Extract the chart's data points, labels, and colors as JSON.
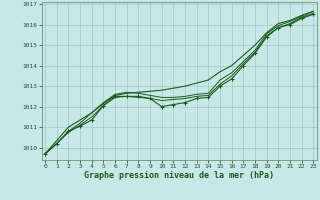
{
  "xlabel": "Graphe pression niveau de la mer (hPa)",
  "background_color": "#c8e8e8",
  "grid_color": "#b0c8c8",
  "line_color": "#1a5c1a",
  "xlim": [
    -0.3,
    23.3
  ],
  "ylim": [
    1009.4,
    1017.1
  ],
  "yticks": [
    1010,
    1011,
    1012,
    1013,
    1014,
    1015,
    1016,
    1017
  ],
  "x_ticks": [
    0,
    1,
    2,
    3,
    4,
    5,
    6,
    7,
    8,
    9,
    10,
    11,
    12,
    13,
    14,
    15,
    16,
    17,
    18,
    19,
    20,
    21,
    22,
    23
  ],
  "series_no_marker": [
    [
      1009.7,
      1010.2,
      1010.75,
      1011.1,
      1011.5,
      1012.05,
      1012.45,
      1012.5,
      1012.45,
      1012.4,
      1012.3,
      1012.35,
      1012.4,
      1012.5,
      1012.55,
      1013.1,
      1013.5,
      1014.1,
      1014.65,
      1015.45,
      1015.85,
      1016.05,
      1016.35,
      1016.55
    ],
    [
      1009.7,
      1010.2,
      1010.8,
      1011.2,
      1011.7,
      1012.2,
      1012.6,
      1012.7,
      1012.65,
      1012.55,
      1012.45,
      1012.45,
      1012.5,
      1012.6,
      1012.65,
      1013.3,
      1013.65,
      1014.2,
      1014.75,
      1015.55,
      1015.95,
      1016.15,
      1016.4,
      1016.65
    ]
  ],
  "series_straight": [
    1009.7,
    1010.35,
    1011.0,
    1011.35,
    1011.7,
    1012.15,
    1012.55,
    1012.65,
    1012.7,
    1012.75,
    1012.8,
    1012.9,
    1013.0,
    1013.15,
    1013.3,
    1013.7,
    1014.0,
    1014.5,
    1015.0,
    1015.6,
    1016.05,
    1016.2,
    1016.45,
    1016.65
  ],
  "series_marked": [
    1009.7,
    1010.2,
    1010.8,
    1011.05,
    1011.35,
    1012.05,
    1012.5,
    1012.5,
    1012.5,
    1012.4,
    1012.0,
    1012.1,
    1012.2,
    1012.4,
    1012.45,
    1013.0,
    1013.35,
    1014.0,
    1014.6,
    1015.4,
    1015.85,
    1016.0,
    1016.3,
    1016.5
  ]
}
